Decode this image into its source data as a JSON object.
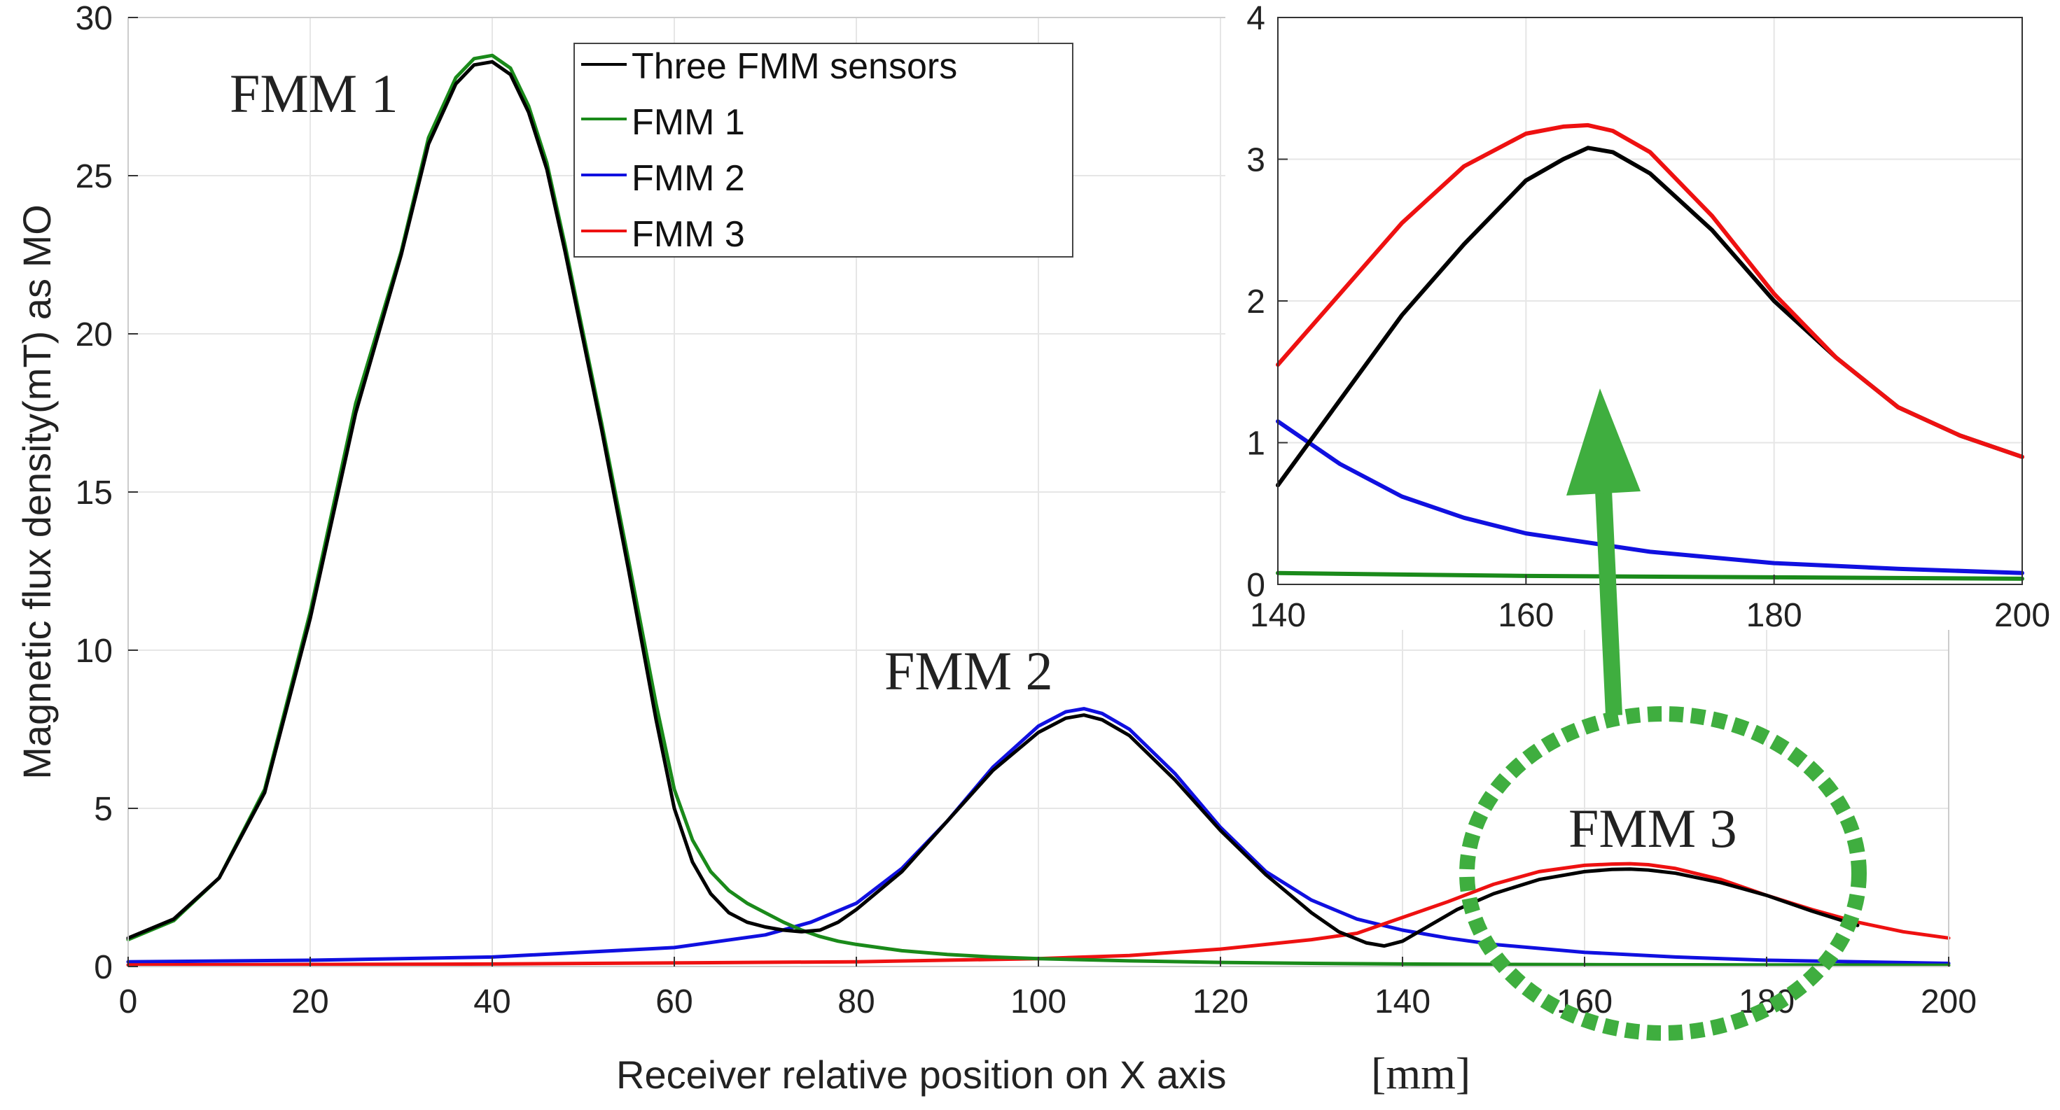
{
  "chart_data": [
    {
      "type": "line",
      "xlabel": "Receiver  relative position on X axis",
      "xlabel_unit": "[mm]",
      "ylabel": "Magnetic flux density(mT) as MO",
      "xlim": [
        0,
        200
      ],
      "ylim": [
        0,
        30
      ],
      "xticks": [
        0,
        20,
        40,
        60,
        80,
        100,
        120,
        140,
        160,
        180,
        200
      ],
      "yticks": [
        0,
        5,
        10,
        15,
        20,
        25,
        30
      ],
      "grid": true,
      "legend_position": "top-center",
      "annotations": [
        "FMM 1",
        "FMM 2",
        "FMM 3"
      ],
      "series": [
        {
          "name": "Three FMM sensors",
          "color": "#000000",
          "x": [
            0,
            5,
            10,
            15,
            20,
            25,
            30,
            33,
            36,
            38,
            40,
            42,
            44,
            46,
            48,
            50,
            52,
            55,
            58,
            60,
            62,
            64,
            66,
            68,
            70,
            72,
            74,
            76,
            78,
            80,
            85,
            90,
            95,
            100,
            103,
            105,
            107,
            110,
            115,
            120,
            125,
            130,
            133,
            136,
            138,
            140,
            143,
            146,
            150,
            155,
            160,
            163,
            165,
            167,
            170,
            175,
            180,
            185,
            190
          ],
          "y": [
            0.9,
            1.5,
            2.8,
            5.5,
            11.0,
            17.5,
            22.5,
            26.0,
            27.9,
            28.5,
            28.6,
            28.2,
            27.0,
            25.2,
            22.6,
            19.8,
            17.0,
            12.5,
            7.8,
            5.0,
            3.3,
            2.3,
            1.7,
            1.4,
            1.25,
            1.15,
            1.1,
            1.15,
            1.4,
            1.8,
            3.0,
            4.6,
            6.2,
            7.4,
            7.85,
            7.95,
            7.8,
            7.3,
            5.9,
            4.3,
            2.9,
            1.7,
            1.1,
            0.75,
            0.65,
            0.8,
            1.3,
            1.8,
            2.3,
            2.75,
            3.0,
            3.07,
            3.08,
            3.05,
            2.95,
            2.65,
            2.25,
            1.75,
            1.3
          ]
        },
        {
          "name": "FMM 1",
          "color": "#1a8a1a",
          "x": [
            0,
            5,
            10,
            15,
            20,
            25,
            30,
            33,
            36,
            38,
            40,
            42,
            44,
            46,
            48,
            50,
            52,
            55,
            58,
            60,
            62,
            64,
            66,
            68,
            70,
            72,
            74,
            76,
            78,
            80,
            85,
            90,
            95,
            100,
            110,
            120,
            130,
            140,
            160,
            180,
            200
          ],
          "y": [
            0.85,
            1.45,
            2.8,
            5.6,
            11.2,
            17.8,
            22.6,
            26.2,
            28.1,
            28.7,
            28.8,
            28.4,
            27.2,
            25.4,
            22.8,
            20.0,
            17.2,
            12.8,
            8.3,
            5.6,
            4.0,
            3.0,
            2.4,
            2.0,
            1.7,
            1.4,
            1.15,
            0.95,
            0.8,
            0.7,
            0.5,
            0.38,
            0.3,
            0.25,
            0.18,
            0.13,
            0.1,
            0.08,
            0.06,
            0.05,
            0.04
          ]
        },
        {
          "name": "FMM 2",
          "color": "#1010e0",
          "x": [
            0,
            20,
            40,
            60,
            70,
            75,
            80,
            85,
            90,
            95,
            100,
            103,
            105,
            107,
            110,
            115,
            120,
            125,
            130,
            135,
            140,
            145,
            150,
            160,
            170,
            180,
            190,
            200
          ],
          "y": [
            0.15,
            0.2,
            0.3,
            0.6,
            1.0,
            1.4,
            2.0,
            3.1,
            4.6,
            6.3,
            7.6,
            8.05,
            8.15,
            8.0,
            7.5,
            6.1,
            4.4,
            3.0,
            2.1,
            1.5,
            1.15,
            0.9,
            0.7,
            0.45,
            0.3,
            0.2,
            0.15,
            0.1
          ]
        },
        {
          "name": "FMM 3",
          "color": "#ee1111",
          "x": [
            0,
            40,
            80,
            100,
            110,
            120,
            130,
            135,
            140,
            145,
            150,
            155,
            160,
            163,
            165,
            167,
            170,
            175,
            180,
            185,
            190,
            195,
            200
          ],
          "y": [
            0.05,
            0.08,
            0.15,
            0.25,
            0.35,
            0.55,
            0.85,
            1.05,
            1.55,
            2.05,
            2.6,
            3.0,
            3.2,
            3.24,
            3.25,
            3.22,
            3.1,
            2.75,
            2.25,
            1.8,
            1.4,
            1.1,
            0.9
          ]
        }
      ]
    },
    {
      "type": "line",
      "inset": true,
      "xlim": [
        140,
        200
      ],
      "ylim": [
        0,
        4
      ],
      "xticks": [
        140,
        160,
        180,
        200
      ],
      "yticks": [
        0,
        1,
        2,
        3,
        4
      ],
      "grid": true,
      "series": [
        {
          "name": "Three FMM sensors",
          "color": "#000000",
          "x": [
            140,
            145,
            150,
            155,
            160,
            163,
            165,
            167,
            170,
            175,
            180,
            185,
            190,
            195,
            200
          ],
          "y": [
            0.7,
            1.3,
            1.9,
            2.4,
            2.85,
            3.0,
            3.08,
            3.05,
            2.9,
            2.5,
            2.0,
            1.6,
            1.25,
            1.05,
            0.9
          ]
        },
        {
          "name": "FMM 1",
          "color": "#1a8a1a",
          "x": [
            140,
            160,
            180,
            200
          ],
          "y": [
            0.08,
            0.06,
            0.05,
            0.04
          ]
        },
        {
          "name": "FMM 2",
          "color": "#1010e0",
          "x": [
            140,
            145,
            150,
            155,
            160,
            170,
            180,
            190,
            200
          ],
          "y": [
            1.15,
            0.85,
            0.62,
            0.47,
            0.36,
            0.23,
            0.15,
            0.11,
            0.08
          ]
        },
        {
          "name": "FMM 3",
          "color": "#ee1111",
          "x": [
            140,
            145,
            150,
            155,
            160,
            163,
            165,
            167,
            170,
            175,
            180,
            185,
            190,
            195,
            200
          ],
          "y": [
            1.55,
            2.05,
            2.55,
            2.95,
            3.18,
            3.23,
            3.24,
            3.2,
            3.05,
            2.6,
            2.05,
            1.6,
            1.25,
            1.05,
            0.9
          ]
        }
      ]
    }
  ]
}
